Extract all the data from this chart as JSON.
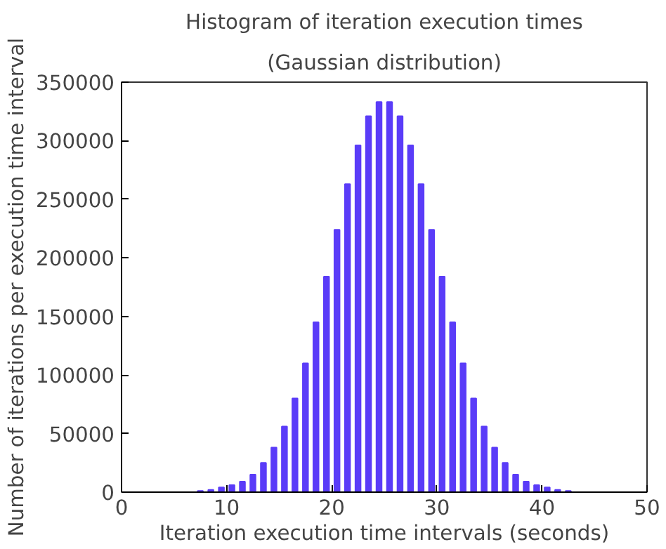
{
  "chart_data": {
    "type": "histogram",
    "title": "Histogram of iteration execution times",
    "subtitle": "(Gaussian distribution)",
    "xlabel": "Iteration execution time intervals (seconds)",
    "ylabel": "Number of iterations per execution time interval",
    "bins": [
      0,
      1,
      2,
      3,
      4,
      5,
      6,
      7,
      8,
      9,
      10,
      11,
      12,
      13,
      14,
      15,
      16,
      17,
      18,
      19,
      20,
      21,
      22,
      23,
      24,
      25,
      26,
      27,
      28,
      29,
      30,
      31,
      32,
      33,
      34,
      35,
      36,
      37,
      38,
      39,
      40,
      41,
      42,
      43,
      44,
      45,
      46,
      47,
      48,
      49,
      50
    ],
    "values": [
      0,
      0,
      0,
      0,
      0,
      0,
      0,
      1000,
      2000,
      4000,
      6000,
      9000,
      15000,
      25000,
      38000,
      56000,
      80000,
      110000,
      145000,
      184000,
      224000,
      263000,
      296000,
      321000,
      333000,
      333000,
      321000,
      296000,
      263000,
      224000,
      184000,
      145000,
      110000,
      80000,
      56000,
      38000,
      25000,
      15000,
      9000,
      6000,
      4000,
      2000,
      1000,
      0,
      0,
      0,
      0,
      0,
      0,
      0
    ],
    "color": "#5a3cf8",
    "xlim": [
      0,
      50
    ],
    "xticks": [
      0,
      10,
      20,
      30,
      40,
      50
    ],
    "ylim": [
      0,
      350000
    ],
    "yticks": [
      0,
      50000,
      100000,
      150000,
      200000,
      250000,
      300000,
      350000
    ],
    "grid": false
  }
}
